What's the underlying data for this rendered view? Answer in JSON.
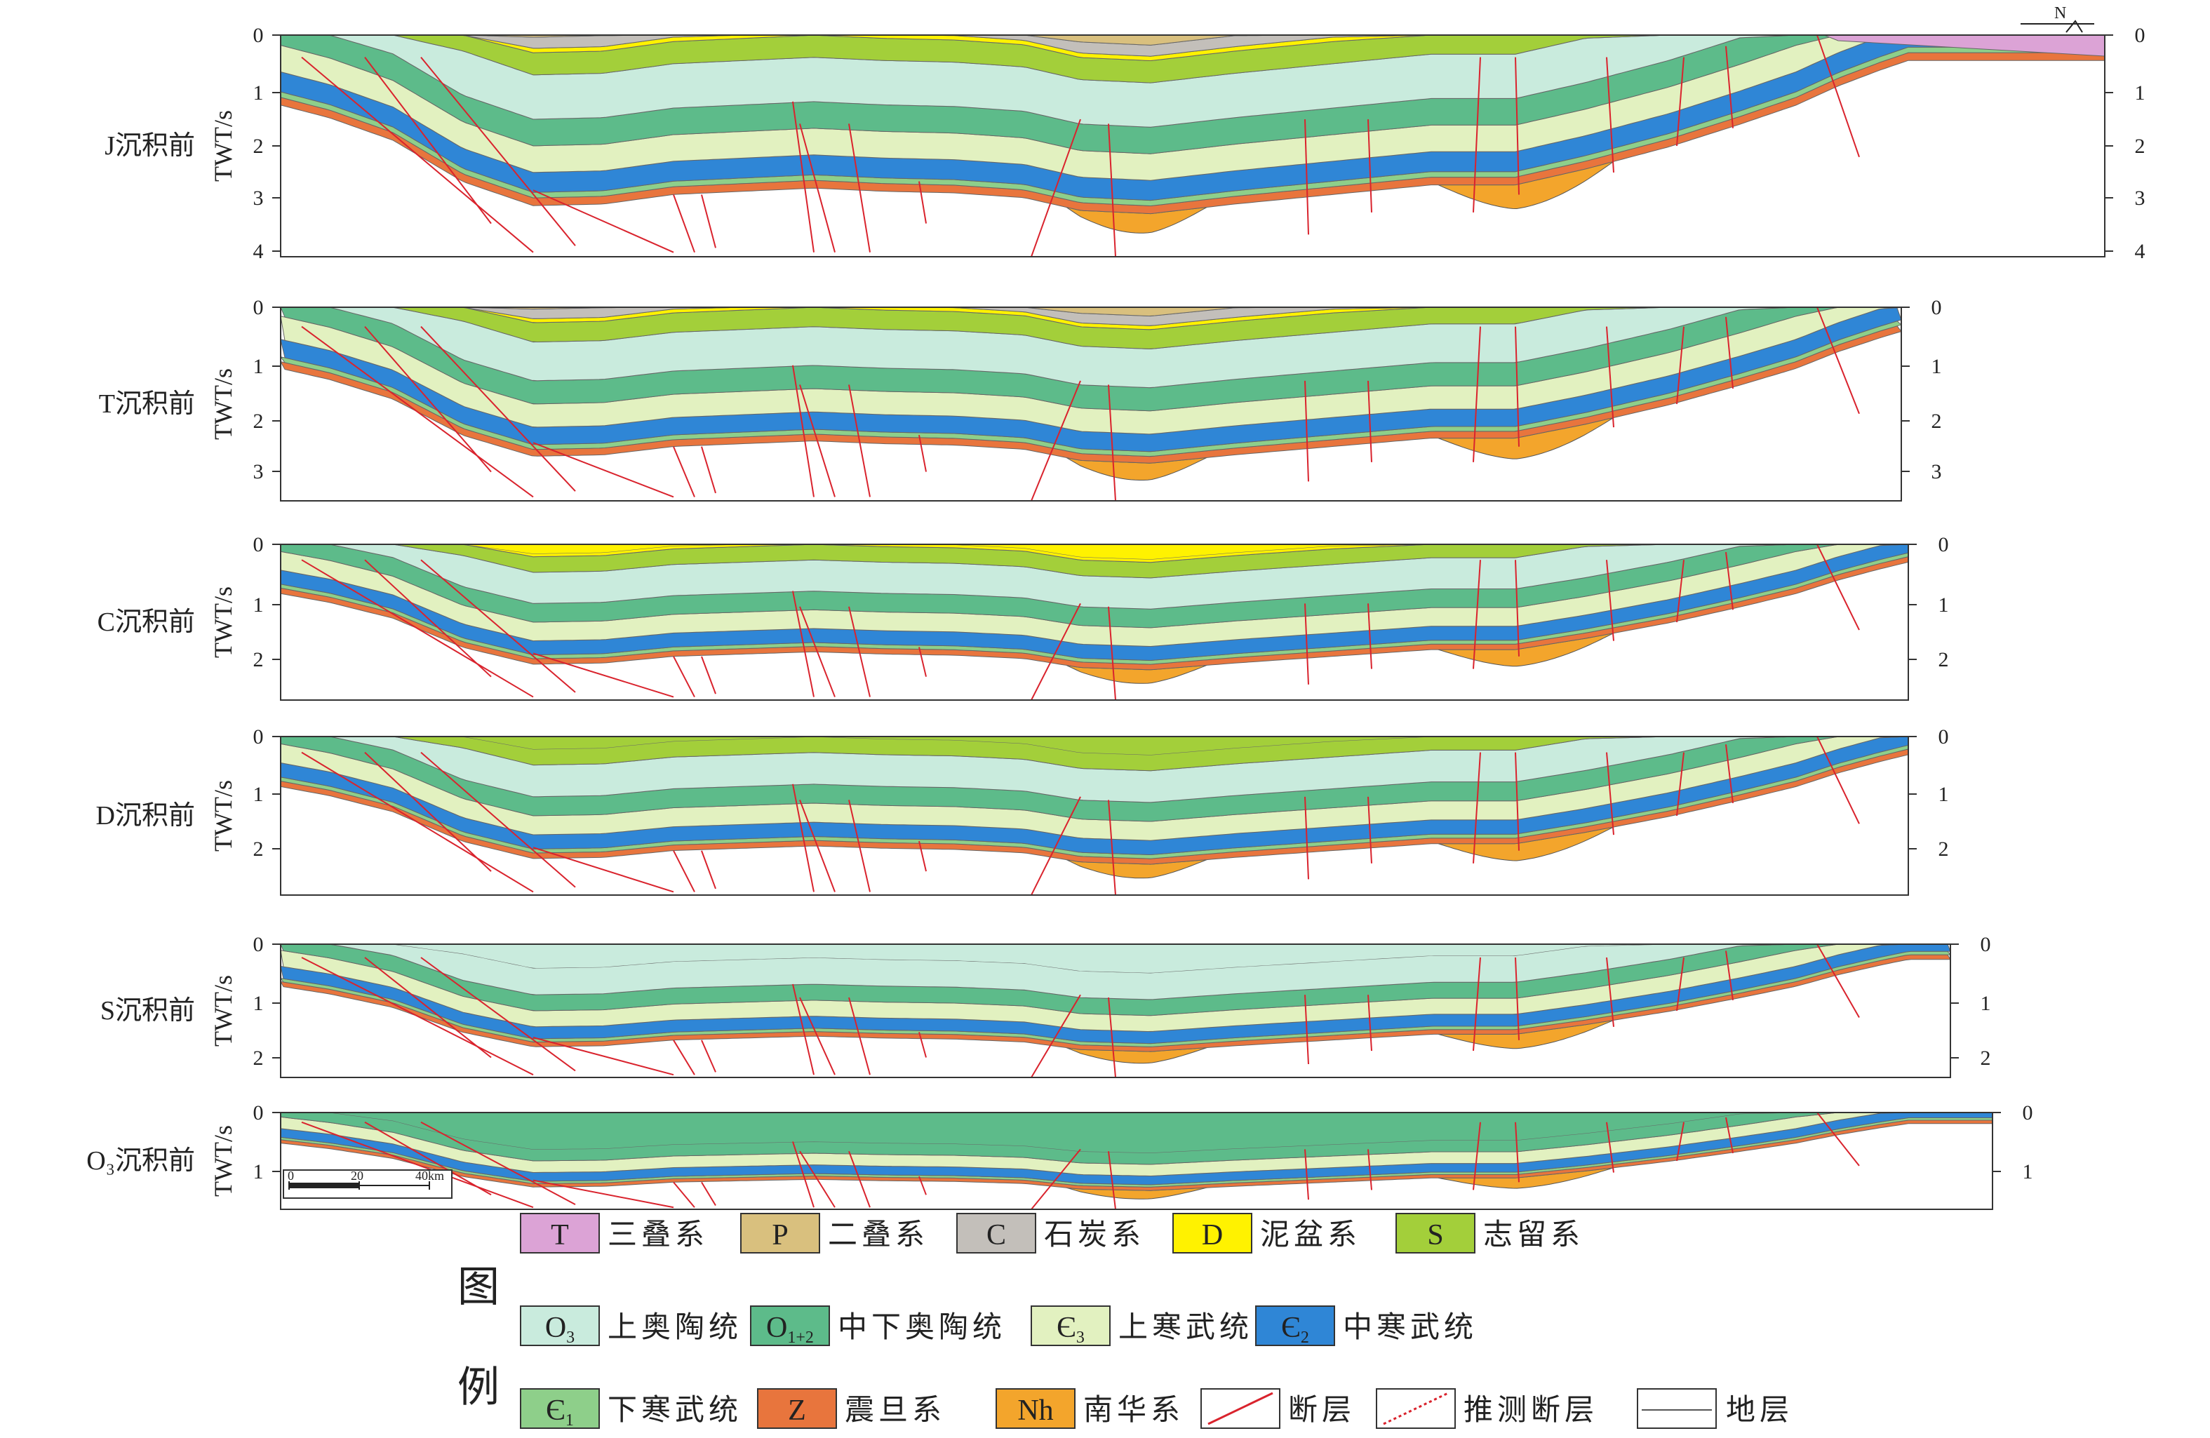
{
  "axis_unit": "TWT/s",
  "north_label": "N",
  "scale_bar": {
    "ticks": [
      "0",
      "20",
      "40km"
    ]
  },
  "legend_heading": [
    "图",
    "例"
  ],
  "panels": [
    {
      "id": "J",
      "title": "J沉积前",
      "ticks": [
        "0",
        "1",
        "2",
        "3",
        "4"
      ]
    },
    {
      "id": "T",
      "title": "T沉积前",
      "ticks": [
        "0",
        "1",
        "2",
        "3"
      ]
    },
    {
      "id": "C",
      "title": "C沉积前",
      "ticks": [
        "0",
        "1",
        "2"
      ]
    },
    {
      "id": "D",
      "title": "D沉积前",
      "ticks": [
        "0",
        "1",
        "2"
      ]
    },
    {
      "id": "S",
      "title": "S沉积前",
      "ticks": [
        "0",
        "1",
        "2"
      ]
    },
    {
      "id": "O3",
      "title": "O₃沉积前",
      "ticks": [
        "0",
        "1"
      ]
    }
  ],
  "units": {
    "T": {
      "symbol": "T",
      "sub": "",
      "label": "三叠系",
      "color": "#dca3d6"
    },
    "P": {
      "symbol": "P",
      "sub": "",
      "label": "二叠系",
      "color": "#d9c07e"
    },
    "C": {
      "symbol": "C",
      "sub": "",
      "label": "石炭系",
      "color": "#c3bfba"
    },
    "D": {
      "symbol": "D",
      "sub": "",
      "label": "泥盆系",
      "color": "#fff200"
    },
    "S": {
      "symbol": "S",
      "sub": "",
      "label": "志留系",
      "color": "#a3cf3a"
    },
    "O3": {
      "symbol": "O",
      "sub": "3",
      "label": "上奥陶统",
      "color": "#c9ebdd"
    },
    "O12": {
      "symbol": "O",
      "sub": "1+2",
      "label": "中下奥陶统",
      "color": "#5dbb8a"
    },
    "E3": {
      "symbol": "Є",
      "sub": "3",
      "label": "上寒武统",
      "color": "#e2f1c0"
    },
    "E2": {
      "symbol": "Є",
      "sub": "2",
      "label": "中寒武统",
      "color": "#2f86d6"
    },
    "E1": {
      "symbol": "Є",
      "sub": "1",
      "label": "下寒武统",
      "color": "#8ecf8a"
    },
    "Z": {
      "symbol": "Z",
      "sub": "",
      "label": "震旦系",
      "color": "#e8753d"
    },
    "Nh": {
      "symbol": "Nh",
      "sub": "",
      "label": "南华系",
      "color": "#f3a52c"
    }
  },
  "line_legend": {
    "fault": "断层",
    "inferred_fault": "推测断层",
    "stratum": "地层"
  },
  "colors": {
    "fault": "#d9232d",
    "frame": "#333333"
  }
}
